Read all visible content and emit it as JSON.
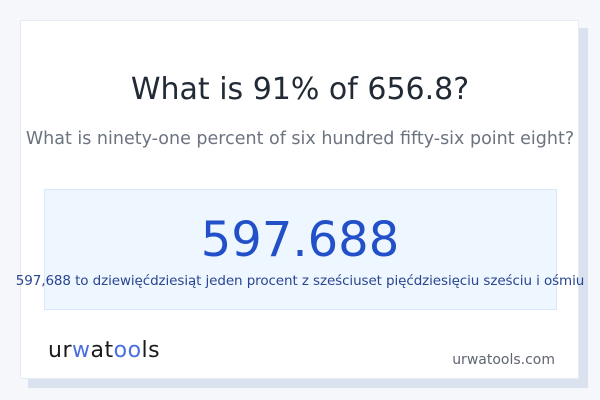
{
  "title": "What is 91% of 656.8?",
  "subtitle": "What is ninety-one percent of six hundred fifty-six point eight?",
  "result": {
    "value": "597.688",
    "words": "597,688 to dziewięćdziesiąt jeden procent z sześciuset pięćdziesięciu sześciu i ośmiu"
  },
  "logo": {
    "p1": "ur",
    "p2": "w",
    "p3": "at",
    "p4": "oo",
    "p5": "ls"
  },
  "footer": {
    "domain": "urwatools.com"
  },
  "colors": {
    "accent": "#2250c8",
    "logo_blue": "#4a6ee0",
    "result_bg": "#eef6ff"
  }
}
